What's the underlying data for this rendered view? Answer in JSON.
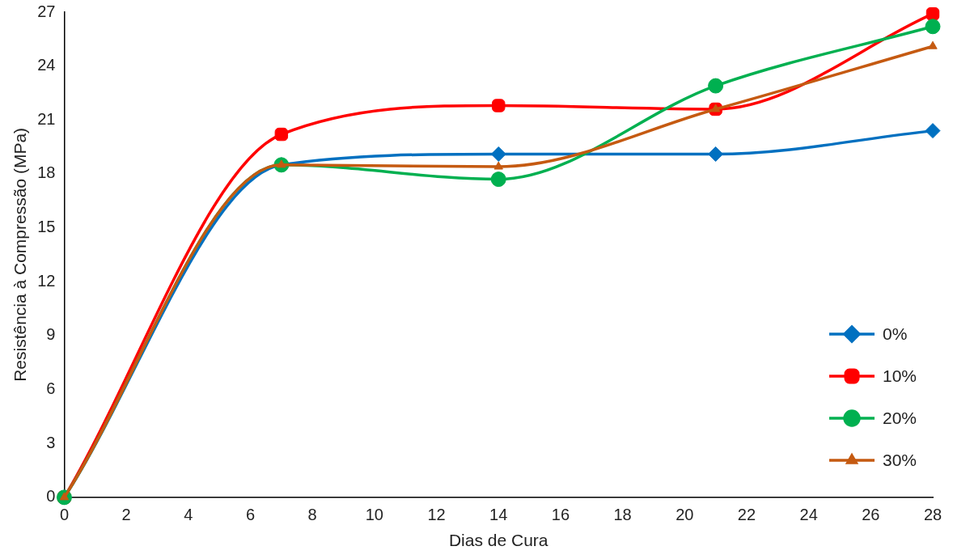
{
  "chart_data": {
    "type": "line",
    "xlabel": "Dias de Cura",
    "ylabel": "Resistência à Compressão (MPa)",
    "x": [
      0,
      7,
      14,
      21,
      28
    ],
    "xlim": [
      0,
      28
    ],
    "xticks": [
      0,
      2,
      4,
      6,
      8,
      10,
      12,
      14,
      16,
      18,
      20,
      22,
      24,
      26,
      28
    ],
    "ylim": [
      0,
      27
    ],
    "yticks": [
      0,
      3,
      6,
      9,
      12,
      15,
      18,
      21,
      24,
      27
    ],
    "grid": false,
    "legend": "bottom right",
    "series": [
      {
        "name": "0%",
        "color": "#0070c0",
        "marker": "diamond",
        "values": [
          0,
          18.5,
          19.1,
          19.1,
          20.4
        ]
      },
      {
        "name": "10%",
        "color": "#ff0000",
        "marker": "square",
        "values": [
          0,
          20.2,
          21.8,
          21.6,
          26.9
        ]
      },
      {
        "name": "20%",
        "color": "#00b050",
        "marker": "circle",
        "values": [
          0,
          18.5,
          17.7,
          22.9,
          26.2
        ]
      },
      {
        "name": "30%",
        "color": "#c55a11",
        "marker": "triangle",
        "values": [
          0,
          18.5,
          18.4,
          21.6,
          25.1
        ]
      }
    ]
  }
}
